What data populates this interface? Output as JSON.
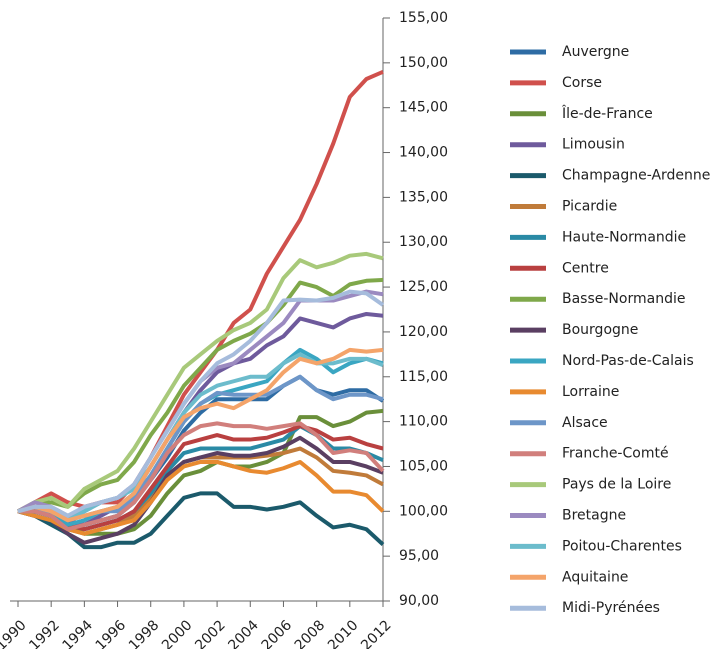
{
  "chart_data": {
    "type": "line",
    "x": [
      1990,
      1991,
      1992,
      1993,
      1994,
      1995,
      1996,
      1997,
      1998,
      1999,
      2000,
      2001,
      2002,
      2003,
      2004,
      2005,
      2006,
      2007,
      2008,
      2009,
      2010,
      2011,
      2012
    ],
    "xlim": [
      1990,
      2012
    ],
    "xticks": [
      1990,
      1992,
      1994,
      1996,
      1998,
      2000,
      2002,
      2004,
      2006,
      2008,
      2010,
      2012
    ],
    "ylim": [
      90,
      155
    ],
    "yticks": [
      {
        "value": 90,
        "label": "90,00"
      },
      {
        "value": 95,
        "label": "95,00"
      },
      {
        "value": 100,
        "label": "100,00"
      },
      {
        "value": 105,
        "label": "105,00"
      },
      {
        "value": 110,
        "label": "110,00"
      },
      {
        "value": 115,
        "label": "115,00"
      },
      {
        "value": 120,
        "label": "120,00"
      },
      {
        "value": 125,
        "label": "125,00"
      },
      {
        "value": 130,
        "label": "130,00"
      },
      {
        "value": 135,
        "label": "135,00"
      },
      {
        "value": 140,
        "label": "140,00"
      },
      {
        "value": 145,
        "label": "145,00"
      },
      {
        "value": 150,
        "label": "150,00"
      },
      {
        "value": 155,
        "label": "155,00"
      }
    ],
    "legend": "right",
    "series": [
      {
        "name": "Auvergne",
        "color": "#2e6ca4",
        "values": [
          100,
          100,
          99.5,
          98.5,
          98.5,
          99,
          99.5,
          101,
          103.5,
          106,
          109,
          111,
          112.5,
          112.5,
          112.5,
          112.5,
          114,
          115,
          113.5,
          113,
          113.5,
          113.5,
          112.3
        ]
      },
      {
        "name": "Corse",
        "color": "#d0504c",
        "values": [
          100,
          101,
          102,
          101,
          100.5,
          101,
          101,
          103,
          106,
          109.5,
          113,
          115.5,
          118,
          121,
          122.5,
          126.5,
          129.5,
          132.5,
          136.5,
          141,
          146.2,
          148.2,
          149
        ]
      },
      {
        "name": "Île-de-France",
        "color": "#6a8f3a",
        "values": [
          100,
          100,
          99.5,
          98.5,
          97.5,
          97.5,
          97.5,
          98,
          99.5,
          102,
          104,
          104.5,
          105.5,
          105,
          105,
          105.5,
          106.5,
          110.5,
          110.5,
          109.5,
          110,
          111,
          111.2
        ]
      },
      {
        "name": "Limousin",
        "color": "#6e5a9c",
        "values": [
          100,
          100.5,
          100,
          99,
          98.5,
          99.5,
          100.5,
          102,
          105,
          108,
          111,
          113.5,
          115.5,
          116.5,
          117,
          118.5,
          119.5,
          121.5,
          121,
          120.5,
          121.5,
          122,
          121.8
        ]
      },
      {
        "name": "Champagne-Ardenne",
        "color": "#1b5a6b",
        "values": [
          100,
          99.5,
          98.5,
          97.5,
          96,
          96,
          96.5,
          96.5,
          97.5,
          99.5,
          101.5,
          102,
          102,
          100.5,
          100.5,
          100.2,
          100.5,
          101,
          99.5,
          98.2,
          98.5,
          98,
          96.3
        ]
      },
      {
        "name": "Picardie",
        "color": "#c07b3a",
        "values": [
          100,
          100,
          99.5,
          98,
          97.5,
          98,
          98.5,
          99.5,
          101.5,
          104,
          105.5,
          106,
          106,
          106,
          106,
          106.2,
          106.5,
          107,
          106,
          104.5,
          104.3,
          104,
          103
        ]
      },
      {
        "name": "Haute-Normandie",
        "color": "#2a8aa5",
        "values": [
          100,
          100,
          99.5,
          98.5,
          98,
          98.5,
          99,
          100,
          102,
          104.5,
          106.5,
          107,
          107,
          107,
          107,
          107.5,
          108,
          109.5,
          108.5,
          107,
          107,
          106.5,
          105.7
        ]
      },
      {
        "name": "Centre",
        "color": "#b94040",
        "values": [
          100,
          100,
          99.5,
          98.5,
          98,
          98.5,
          99,
          100,
          102.5,
          105,
          107.5,
          108,
          108.5,
          108,
          108,
          108.2,
          108.8,
          109.5,
          109,
          108,
          108.2,
          107.5,
          107
        ]
      },
      {
        "name": "Basse-Normandie",
        "color": "#7fa84a",
        "values": [
          100,
          101,
          101,
          100.5,
          102,
          103,
          103.5,
          105.5,
          108.5,
          111,
          114,
          116,
          118,
          119,
          119.8,
          121,
          123,
          125.5,
          125,
          124,
          125.3,
          125.7,
          125.8
        ]
      },
      {
        "name": "Bourgogne",
        "color": "#5a3f62",
        "values": [
          100,
          99.5,
          99,
          97.5,
          96.5,
          97,
          97.5,
          98.5,
          101,
          104,
          105.5,
          106,
          106.5,
          106.2,
          106.2,
          106.5,
          107.2,
          108.2,
          107,
          105.5,
          105.5,
          105,
          104.3
        ]
      },
      {
        "name": "Nord-Pas-de-Calais",
        "color": "#3aa6c2",
        "values": [
          100,
          100,
          99.5,
          98.5,
          99,
          100,
          100.5,
          101.5,
          104,
          107,
          110,
          112,
          113,
          113.5,
          114,
          114.5,
          116.5,
          118,
          117,
          115.5,
          116.5,
          117,
          116.5
        ]
      },
      {
        "name": "Lorraine",
        "color": "#e88a30",
        "values": [
          100,
          99.5,
          99,
          98,
          97.5,
          98,
          98.5,
          99,
          101,
          103.5,
          105,
          105.5,
          105.5,
          105,
          104.5,
          104.3,
          104.8,
          105.5,
          104,
          102.2,
          102.2,
          101.8,
          100
        ]
      },
      {
        "name": "Alsace",
        "color": "#6d96c8",
        "values": [
          100,
          100,
          100,
          99,
          99.5,
          100,
          100,
          101.5,
          104,
          107,
          110,
          112,
          113.2,
          113,
          113,
          113,
          114,
          115,
          113.5,
          112.5,
          113,
          113,
          112.5
        ]
      },
      {
        "name": "Franche-Comté",
        "color": "#d17f7c",
        "values": [
          100,
          100,
          99.5,
          98,
          98.5,
          99,
          99.5,
          101,
          103.5,
          106.5,
          108.5,
          109.5,
          109.8,
          109.5,
          109.5,
          109.2,
          109.5,
          109.8,
          108.5,
          106.5,
          106.8,
          106.5,
          104.5
        ]
      },
      {
        "name": "Pays de la Loire",
        "color": "#a8c97a",
        "values": [
          100,
          101,
          101.5,
          100.5,
          102.5,
          103.5,
          104.5,
          107,
          110,
          113,
          116,
          117.5,
          119,
          120.2,
          121,
          122.5,
          126,
          128,
          127.2,
          127.7,
          128.5,
          128.7,
          128.2
        ]
      },
      {
        "name": "Bretagne",
        "color": "#9b8ac0",
        "values": [
          100,
          101,
          100.5,
          99.5,
          100,
          101,
          101.5,
          103,
          106,
          109,
          112,
          114.5,
          116,
          116.5,
          118,
          119.5,
          121,
          123.5,
          123.5,
          123.5,
          124,
          124.5,
          124.2
        ]
      },
      {
        "name": "Poitou-Charentes",
        "color": "#6cbccc",
        "values": [
          100,
          100.5,
          100,
          99,
          100,
          101,
          101.5,
          102.5,
          105,
          108,
          111,
          113,
          114,
          114.5,
          115,
          115,
          116.5,
          117.5,
          116.5,
          116.5,
          117,
          117,
          116.3
        ]
      },
      {
        "name": "Aquitaine",
        "color": "#f4a46a",
        "values": [
          100,
          100.5,
          100,
          99,
          99.5,
          100,
          100.5,
          102,
          105,
          108,
          110.5,
          111.5,
          112,
          111.5,
          112.5,
          113.5,
          115.5,
          117,
          116.5,
          117,
          118,
          117.8,
          118
        ]
      },
      {
        "name": "Midi-Pyrénées",
        "color": "#a6bcdc",
        "values": [
          100,
          100.5,
          100.5,
          99.5,
          100.5,
          101,
          101.5,
          103,
          106,
          109,
          112,
          114.5,
          116.5,
          117.5,
          119,
          121,
          123.5,
          123.6,
          123.5,
          123.8,
          124.5,
          124.3,
          123
        ]
      }
    ]
  }
}
